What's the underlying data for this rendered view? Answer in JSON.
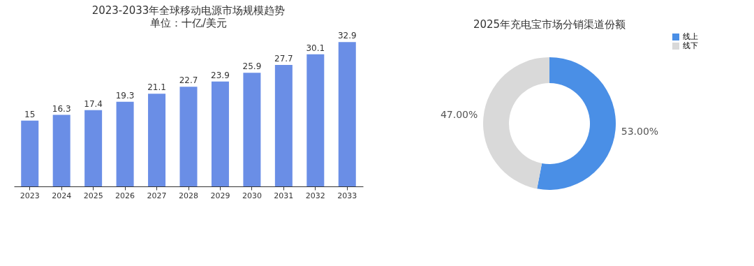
{
  "chart_data": [
    {
      "type": "bar",
      "title": "2023-2033年全球移动电源市场规模趋势",
      "subtitle": "单位：十亿/美元",
      "categories": [
        "2023",
        "2024",
        "2025",
        "2026",
        "2027",
        "2028",
        "2029",
        "2030",
        "2031",
        "2032",
        "2033"
      ],
      "values": [
        15,
        16.3,
        17.4,
        19.3,
        21.1,
        22.7,
        23.9,
        25.9,
        27.7,
        30.1,
        32.9
      ],
      "color": "#6a8ee6",
      "data_labels": true,
      "tick_labels": "x",
      "grid": false
    },
    {
      "type": "donut",
      "title": "2025年充电宝市场分销渠道份额",
      "categories": [
        "线上",
        "线下"
      ],
      "values": [
        53,
        47
      ],
      "colors": [
        "#4a8fe6",
        "#d9d9d9"
      ],
      "value_labels": [
        "53.00%",
        "47.00%"
      ],
      "legend": "right"
    }
  ]
}
